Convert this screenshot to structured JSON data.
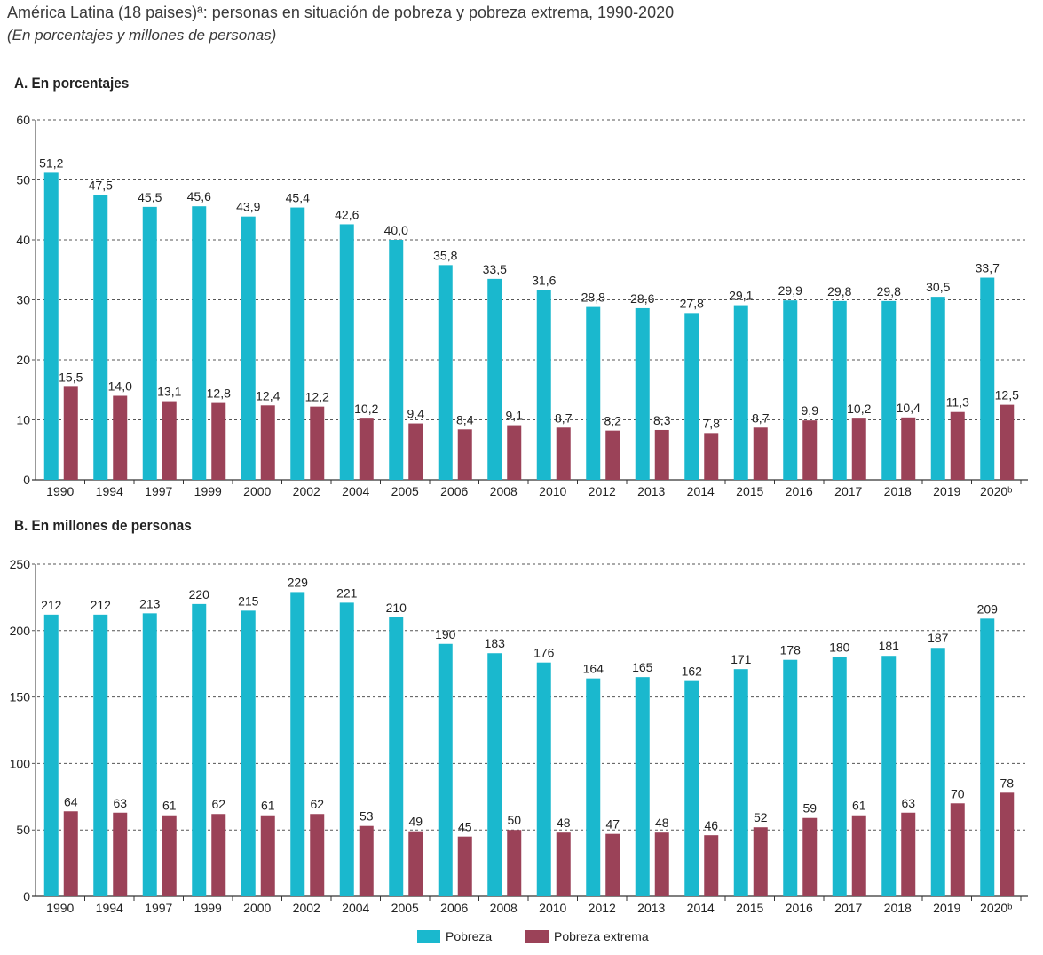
{
  "title": "América Latina (18 paises)ª: personas en situación de pobreza y pobreza extrema, 1990-2020",
  "subtitle": "(En porcentajes y millones de personas)",
  "colors": {
    "pobreza": "#1ab8ce",
    "extrema": "#9b4258",
    "grid": "#555555",
    "axis": "#333333"
  },
  "legend": {
    "pobreza": "Pobreza",
    "extrema": "Pobreza extrema"
  },
  "chart_data": [
    {
      "type": "bar",
      "title": "A. En porcentajes",
      "categories": [
        "1990",
        "1994",
        "1997",
        "1999",
        "2000",
        "2002",
        "2004",
        "2005",
        "2006",
        "2008",
        "2010",
        "2012",
        "2013",
        "2014",
        "2015",
        "2016",
        "2017",
        "2018",
        "2019",
        "2020ᵇ"
      ],
      "ylim": [
        0,
        60
      ],
      "yticks": [
        "0",
        "10",
        "20",
        "30",
        "40",
        "50",
        "60"
      ],
      "grid": true,
      "series": [
        {
          "name": "Pobreza",
          "values": [
            51.2,
            47.5,
            45.5,
            45.6,
            43.9,
            45.4,
            42.6,
            40.0,
            35.8,
            33.5,
            31.6,
            28.8,
            28.6,
            27.8,
            29.1,
            29.9,
            29.8,
            29.8,
            30.5,
            33.7
          ],
          "labels": [
            "51,2",
            "47,5",
            "45,5",
            "45,6",
            "43,9",
            "45,4",
            "42,6",
            "40,0",
            "35,8",
            "33,5",
            "31,6",
            "28,8",
            "28,6",
            "27,8",
            "29,1",
            "29,9",
            "29,8",
            "29,8",
            "30,5",
            "33,7"
          ]
        },
        {
          "name": "Pobreza extrema",
          "values": [
            15.5,
            14.0,
            13.1,
            12.8,
            12.4,
            12.2,
            10.2,
            9.4,
            8.4,
            9.1,
            8.7,
            8.2,
            8.3,
            7.8,
            8.7,
            9.9,
            10.2,
            10.4,
            11.3,
            12.5
          ],
          "labels": [
            "15,5",
            "14,0",
            "13,1",
            "12,8",
            "12,4",
            "12,2",
            "10,2",
            "9,4",
            "8,4",
            "9,1",
            "8,7",
            "8,2",
            "8,3",
            "7,8",
            "8,7",
            "9,9",
            "10,2",
            "10,4",
            "11,3",
            "12,5"
          ]
        }
      ]
    },
    {
      "type": "bar",
      "title": "B. En millones de personas",
      "categories": [
        "1990",
        "1994",
        "1997",
        "1999",
        "2000",
        "2002",
        "2004",
        "2005",
        "2006",
        "2008",
        "2010",
        "2012",
        "2013",
        "2014",
        "2015",
        "2016",
        "2017",
        "2018",
        "2019",
        "2020ᵇ"
      ],
      "ylim": [
        0,
        250
      ],
      "yticks": [
        "0",
        "50",
        "100",
        "150",
        "200",
        "250"
      ],
      "grid": true,
      "series": [
        {
          "name": "Pobreza",
          "values": [
            212,
            212,
            213,
            220,
            215,
            229,
            221,
            210,
            190,
            183,
            176,
            164,
            165,
            162,
            171,
            178,
            180,
            181,
            187,
            209
          ],
          "labels": [
            "212",
            "212",
            "213",
            "220",
            "215",
            "229",
            "221",
            "210",
            "190",
            "183",
            "176",
            "164",
            "165",
            "162",
            "171",
            "178",
            "180",
            "181",
            "187",
            "209"
          ]
        },
        {
          "name": "Pobreza extrema",
          "values": [
            64,
            63,
            61,
            62,
            61,
            62,
            53,
            49,
            45,
            50,
            48,
            47,
            48,
            46,
            52,
            59,
            61,
            63,
            70,
            78
          ],
          "labels": [
            "64",
            "63",
            "61",
            "62",
            "61",
            "62",
            "53",
            "49",
            "45",
            "50",
            "48",
            "47",
            "48",
            "46",
            "52",
            "59",
            "61",
            "63",
            "70",
            "78"
          ]
        }
      ]
    }
  ]
}
